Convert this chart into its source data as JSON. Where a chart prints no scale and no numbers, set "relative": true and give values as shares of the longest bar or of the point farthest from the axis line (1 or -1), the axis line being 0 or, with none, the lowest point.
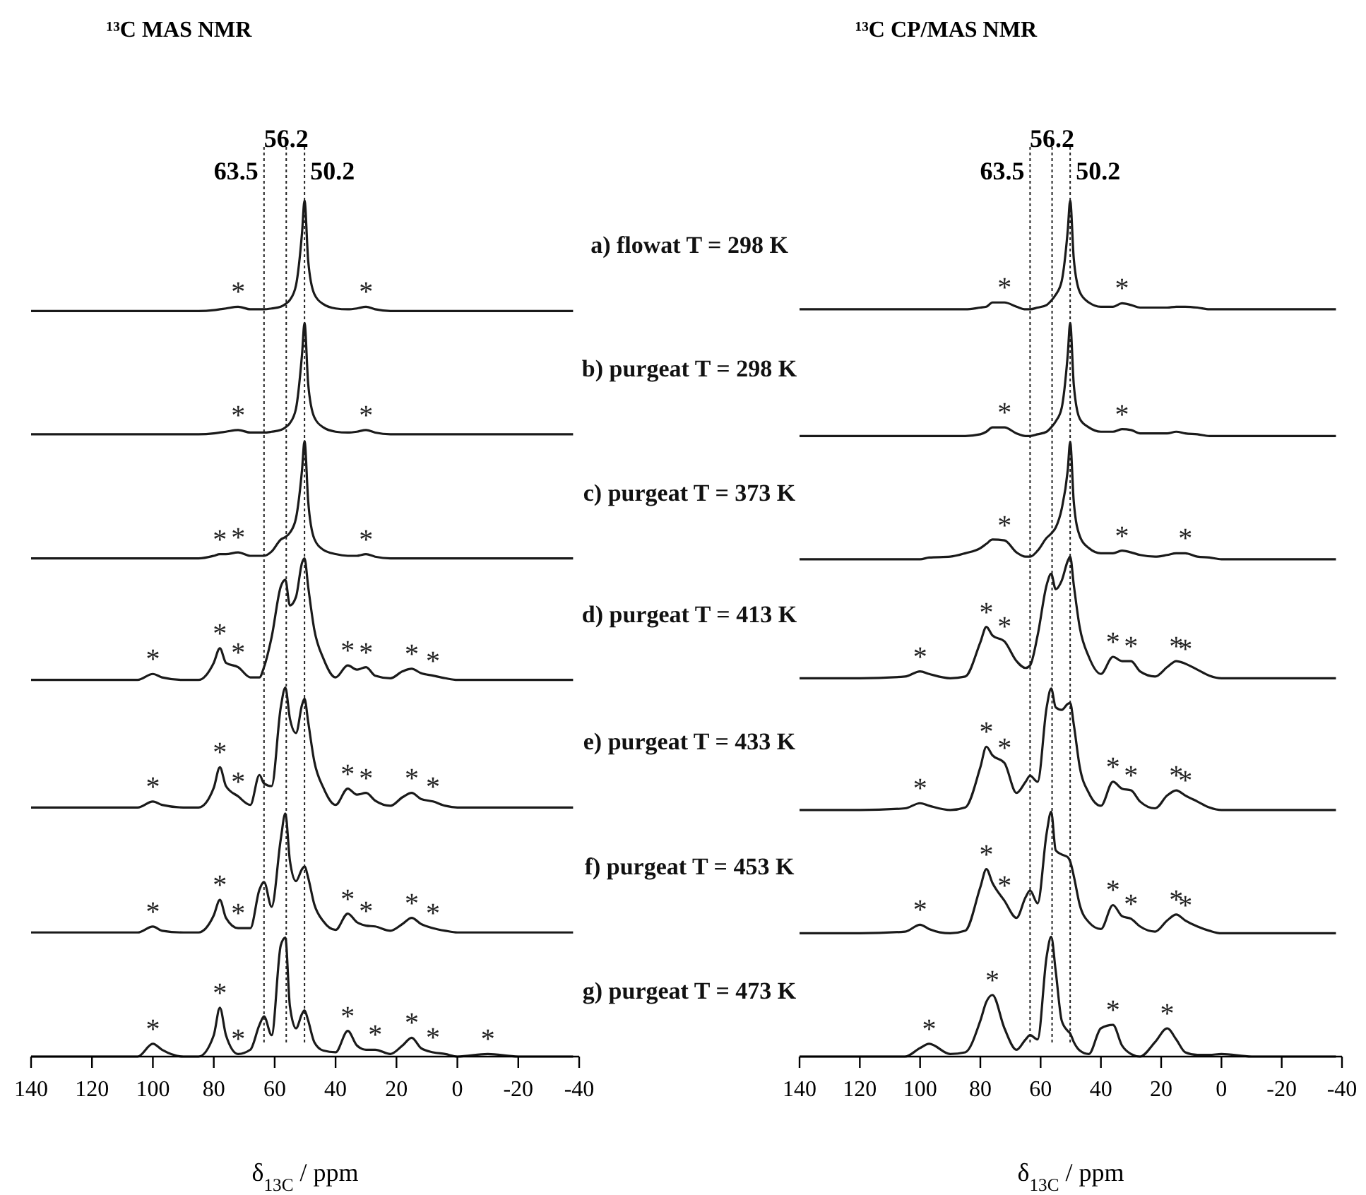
{
  "chart_data": [
    {
      "type": "line",
      "title": "¹³C MAS NMR",
      "xlabel": "δ$_{13C}$ / ppm",
      "relative": true,
      "xlim": [
        140,
        -40
      ],
      "xticks": [
        140,
        120,
        100,
        80,
        60,
        40,
        20,
        0,
        -20,
        -40
      ],
      "x": [
        140,
        120,
        105,
        100,
        97,
        90,
        85,
        80,
        78,
        76,
        72,
        68,
        65,
        63.5,
        61,
        58,
        56.5,
        55,
        53,
        51,
        50.2,
        49,
        47,
        44,
        40,
        36,
        33,
        30,
        27,
        22,
        18,
        15,
        12,
        8,
        4,
        0,
        -10,
        -20,
        -38
      ],
      "series": [
        {
          "name": "a) flowat T = 298 K",
          "color": "#1a1a1a",
          "values": [
            0.871,
            0.871,
            0.871,
            0.871,
            0.871,
            0.871,
            0.871,
            0.872,
            0.873,
            0.874,
            0.876,
            0.873,
            0.873,
            0.873,
            0.874,
            0.876,
            0.879,
            0.884,
            0.901,
            0.963,
            1.0,
            0.93,
            0.891,
            0.879,
            0.874,
            0.873,
            0.874,
            0.876,
            0.873,
            0.871,
            0.871,
            0.871,
            0.871,
            0.871,
            0.871,
            0.871,
            0.871,
            0.871,
            0.871
          ]
        },
        {
          "name": "b) purgeat T = 298 K",
          "color": "#1a1a1a",
          "values": [
            0.727,
            0.727,
            0.727,
            0.727,
            0.727,
            0.727,
            0.727,
            0.728,
            0.729,
            0.73,
            0.732,
            0.729,
            0.729,
            0.729,
            0.73,
            0.732,
            0.735,
            0.74,
            0.757,
            0.821,
            0.857,
            0.786,
            0.747,
            0.735,
            0.73,
            0.729,
            0.73,
            0.732,
            0.729,
            0.727,
            0.727,
            0.727,
            0.727,
            0.727,
            0.727,
            0.727,
            0.727,
            0.727,
            0.727
          ]
        },
        {
          "name": "c) purgeat T = 373 K",
          "color": "#1a1a1a",
          "values": [
            0.582,
            0.582,
            0.582,
            0.582,
            0.582,
            0.582,
            0.582,
            0.585,
            0.587,
            0.587,
            0.589,
            0.585,
            0.585,
            0.585,
            0.59,
            0.604,
            0.607,
            0.612,
            0.629,
            0.686,
            0.719,
            0.649,
            0.605,
            0.592,
            0.587,
            0.585,
            0.585,
            0.587,
            0.584,
            0.582,
            0.582,
            0.582,
            0.582,
            0.582,
            0.582,
            0.582,
            0.582,
            0.582,
            0.582
          ]
        },
        {
          "name": "d) purgeat T = 413 K",
          "color": "#1a1a1a",
          "values": [
            0.44,
            0.44,
            0.44,
            0.447,
            0.443,
            0.44,
            0.44,
            0.46,
            0.477,
            0.46,
            0.455,
            0.443,
            0.443,
            0.455,
            0.49,
            0.549,
            0.557,
            0.527,
            0.537,
            0.577,
            0.582,
            0.549,
            0.499,
            0.465,
            0.443,
            0.457,
            0.452,
            0.455,
            0.445,
            0.442,
            0.45,
            0.453,
            0.448,
            0.445,
            0.442,
            0.44,
            0.44,
            0.44,
            0.44
          ]
        },
        {
          "name": "e) purgeat T = 433 K",
          "color": "#1a1a1a",
          "values": [
            0.291,
            0.291,
            0.291,
            0.298,
            0.294,
            0.291,
            0.291,
            0.314,
            0.338,
            0.316,
            0.304,
            0.294,
            0.329,
            0.319,
            0.316,
            0.408,
            0.431,
            0.395,
            0.378,
            0.411,
            0.418,
            0.391,
            0.345,
            0.314,
            0.294,
            0.313,
            0.306,
            0.308,
            0.299,
            0.293,
            0.303,
            0.308,
            0.301,
            0.298,
            0.293,
            0.291,
            0.291,
            0.291,
            0.291
          ]
        },
        {
          "name": "f) purgeat T = 453 K",
          "color": "#1a1a1a",
          "values": [
            0.145,
            0.145,
            0.145,
            0.152,
            0.147,
            0.145,
            0.145,
            0.165,
            0.183,
            0.162,
            0.15,
            0.15,
            0.195,
            0.204,
            0.175,
            0.254,
            0.284,
            0.229,
            0.205,
            0.219,
            0.222,
            0.209,
            0.178,
            0.158,
            0.148,
            0.167,
            0.157,
            0.153,
            0.152,
            0.147,
            0.155,
            0.162,
            0.155,
            0.15,
            0.147,
            0.145,
            0.145,
            0.145,
            0.145
          ]
        },
        {
          "name": "g) purgeat T = 473 K",
          "color": "#1a1a1a",
          "values": [
            0,
            0,
            0,
            0.015,
            0.008,
            0,
            0,
            0.025,
            0.057,
            0.025,
            0.003,
            0.008,
            0.037,
            0.047,
            0.025,
            0.13,
            0.139,
            0.059,
            0.033,
            0.05,
            0.054,
            0.042,
            0.017,
            0.007,
            0.005,
            0.03,
            0.013,
            0.008,
            0.008,
            0.003,
            0.013,
            0.022,
            0.01,
            0.005,
            0.003,
            0,
            0.003,
            0,
            0
          ]
        }
      ],
      "ref_lines": [
        {
          "axis": "x",
          "value": 63.5,
          "label": "63.5",
          "line_style": "dotted"
        },
        {
          "axis": "x",
          "value": 56.2,
          "label": "56.2",
          "line_style": "dotted"
        },
        {
          "axis": "x",
          "value": 50.2,
          "label": "50.2",
          "line_style": "dotted"
        }
      ],
      "annotations": [
        {
          "text": "*",
          "x": 72,
          "y": 0.876
        },
        {
          "text": "*",
          "x": 30,
          "y": 0.876
        },
        {
          "text": "*",
          "x": 72,
          "y": 0.732
        },
        {
          "text": "*",
          "x": 30,
          "y": 0.732
        },
        {
          "text": "*",
          "x": 78,
          "y": 0.587
        },
        {
          "text": "*",
          "x": 72,
          "y": 0.589
        },
        {
          "text": "*",
          "x": 30,
          "y": 0.587
        },
        {
          "text": "*",
          "x": 100,
          "y": 0.447
        },
        {
          "text": "*",
          "x": 78,
          "y": 0.477
        },
        {
          "text": "*",
          "x": 72,
          "y": 0.455
        },
        {
          "text": "*",
          "x": 36,
          "y": 0.457
        },
        {
          "text": "*",
          "x": 30,
          "y": 0.455
        },
        {
          "text": "*",
          "x": 15,
          "y": 0.453
        },
        {
          "text": "*",
          "x": 8,
          "y": 0.445
        },
        {
          "text": "*",
          "x": 100,
          "y": 0.298
        },
        {
          "text": "*",
          "x": 78,
          "y": 0.338
        },
        {
          "text": "*",
          "x": 72,
          "y": 0.304
        },
        {
          "text": "*",
          "x": 36,
          "y": 0.313
        },
        {
          "text": "*",
          "x": 30,
          "y": 0.308
        },
        {
          "text": "*",
          "x": 15,
          "y": 0.308
        },
        {
          "text": "*",
          "x": 8,
          "y": 0.298
        },
        {
          "text": "*",
          "x": 100,
          "y": 0.152
        },
        {
          "text": "*",
          "x": 78,
          "y": 0.183
        },
        {
          "text": "*",
          "x": 72,
          "y": 0.15
        },
        {
          "text": "*",
          "x": 36,
          "y": 0.167
        },
        {
          "text": "*",
          "x": 30,
          "y": 0.153
        },
        {
          "text": "*",
          "x": 15,
          "y": 0.162
        },
        {
          "text": "*",
          "x": 8,
          "y": 0.15
        },
        {
          "text": "*",
          "x": 100,
          "y": 0.015
        },
        {
          "text": "*",
          "x": 78,
          "y": 0.057
        },
        {
          "text": "*",
          "x": 72,
          "y": 0.003
        },
        {
          "text": "*",
          "x": 36,
          "y": 0.03
        },
        {
          "text": "*",
          "x": 27,
          "y": 0.008
        },
        {
          "text": "*",
          "x": 15,
          "y": 0.022
        },
        {
          "text": "*",
          "x": 8,
          "y": 0.005
        },
        {
          "text": "*",
          "x": -10,
          "y": 0.003
        }
      ]
    },
    {
      "type": "line",
      "title": "¹³C CP/MAS NMR",
      "xlabel": "δ$_{13C}$ / ppm",
      "relative": true,
      "xlim": [
        140,
        -40
      ],
      "xticks": [
        140,
        120,
        100,
        80,
        60,
        40,
        20,
        0,
        -20,
        -40
      ],
      "x": [
        140,
        120,
        105,
        100,
        97,
        90,
        85,
        80,
        78,
        76,
        72,
        68,
        65,
        63.5,
        61,
        58,
        56.5,
        55,
        53,
        51,
        50.2,
        49,
        47,
        44,
        40,
        36,
        33,
        30,
        27,
        22,
        18,
        15,
        12,
        8,
        4,
        0,
        -10,
        -20,
        -38
      ],
      "series": [
        {
          "color": "#1a1a1a",
          "values": [
            0.873,
            0.873,
            0.873,
            0.873,
            0.873,
            0.873,
            0.873,
            0.875,
            0.876,
            0.881,
            0.881,
            0.876,
            0.873,
            0.873,
            0.875,
            0.878,
            0.883,
            0.89,
            0.906,
            0.965,
            1.0,
            0.932,
            0.893,
            0.881,
            0.876,
            0.876,
            0.88,
            0.878,
            0.875,
            0.875,
            0.875,
            0.876,
            0.876,
            0.875,
            0.873,
            0.873,
            0.873,
            0.873,
            0.873
          ]
        },
        {
          "color": "#1a1a1a",
          "values": [
            0.725,
            0.725,
            0.725,
            0.725,
            0.725,
            0.725,
            0.725,
            0.727,
            0.73,
            0.735,
            0.735,
            0.728,
            0.725,
            0.725,
            0.727,
            0.73,
            0.735,
            0.742,
            0.758,
            0.82,
            0.857,
            0.785,
            0.745,
            0.735,
            0.73,
            0.73,
            0.733,
            0.732,
            0.728,
            0.728,
            0.728,
            0.73,
            0.728,
            0.727,
            0.725,
            0.725,
            0.725,
            0.725,
            0.725
          ]
        },
        {
          "color": "#1a1a1a",
          "values": [
            0.581,
            0.581,
            0.581,
            0.581,
            0.583,
            0.584,
            0.588,
            0.594,
            0.599,
            0.604,
            0.603,
            0.589,
            0.584,
            0.584,
            0.591,
            0.606,
            0.611,
            0.618,
            0.64,
            0.685,
            0.718,
            0.648,
            0.608,
            0.594,
            0.588,
            0.588,
            0.591,
            0.589,
            0.586,
            0.584,
            0.586,
            0.588,
            0.588,
            0.584,
            0.583,
            0.581,
            0.581,
            0.581,
            0.581
          ]
        },
        {
          "color": "#1a1a1a",
          "values": [
            0.442,
            0.442,
            0.444,
            0.45,
            0.447,
            0.442,
            0.444,
            0.484,
            0.502,
            0.492,
            0.485,
            0.462,
            0.454,
            0.457,
            0.492,
            0.551,
            0.564,
            0.546,
            0.556,
            0.579,
            0.584,
            0.551,
            0.501,
            0.467,
            0.447,
            0.467,
            0.462,
            0.462,
            0.45,
            0.444,
            0.455,
            0.462,
            0.459,
            0.452,
            0.445,
            0.442,
            0.442,
            0.442,
            0.442
          ]
        },
        {
          "color": "#1a1a1a",
          "values": [
            0.288,
            0.288,
            0.29,
            0.296,
            0.293,
            0.288,
            0.291,
            0.338,
            0.362,
            0.352,
            0.343,
            0.308,
            0.321,
            0.328,
            0.321,
            0.408,
            0.43,
            0.408,
            0.405,
            0.412,
            0.413,
            0.388,
            0.338,
            0.308,
            0.293,
            0.321,
            0.313,
            0.311,
            0.298,
            0.29,
            0.305,
            0.311,
            0.305,
            0.298,
            0.291,
            0.288,
            0.288,
            0.288,
            0.288
          ]
        },
        {
          "color": "#1a1a1a",
          "values": [
            0.144,
            0.144,
            0.146,
            0.154,
            0.149,
            0.144,
            0.147,
            0.198,
            0.219,
            0.203,
            0.182,
            0.162,
            0.186,
            0.194,
            0.179,
            0.261,
            0.286,
            0.241,
            0.236,
            0.233,
            0.228,
            0.211,
            0.177,
            0.157,
            0.149,
            0.177,
            0.164,
            0.161,
            0.152,
            0.146,
            0.159,
            0.166,
            0.159,
            0.152,
            0.147,
            0.144,
            0.144,
            0.144,
            0.144
          ]
        },
        {
          "color": "#1a1a1a",
          "values": [
            0,
            0,
            0,
            0.01,
            0.015,
            0.003,
            0.005,
            0.042,
            0.064,
            0.072,
            0.033,
            0.008,
            0.02,
            0.025,
            0.02,
            0.117,
            0.14,
            0.1,
            0.042,
            0.03,
            0.027,
            0.017,
            0.007,
            0.003,
            0.033,
            0.037,
            0.013,
            0.003,
            0,
            0.017,
            0.033,
            0.02,
            0.005,
            0.002,
            0.002,
            0.003,
            0,
            0,
            0
          ]
        }
      ],
      "ref_lines": [
        {
          "axis": "x",
          "value": 63.5,
          "label": "63.5",
          "line_style": "dotted"
        },
        {
          "axis": "x",
          "value": 56.2,
          "label": "56.2",
          "line_style": "dotted"
        },
        {
          "axis": "x",
          "value": 50.2,
          "label": "50.2",
          "line_style": "dotted"
        }
      ],
      "annotations": [
        {
          "text": "*",
          "x": 72,
          "y": 0.881
        },
        {
          "text": "*",
          "x": 33,
          "y": 0.88
        },
        {
          "text": "*",
          "x": 72,
          "y": 0.735
        },
        {
          "text": "*",
          "x": 33,
          "y": 0.733
        },
        {
          "text": "*",
          "x": 72,
          "y": 0.603
        },
        {
          "text": "*",
          "x": 33,
          "y": 0.591
        },
        {
          "text": "*",
          "x": 12,
          "y": 0.588
        },
        {
          "text": "*",
          "x": 100,
          "y": 0.45
        },
        {
          "text": "*",
          "x": 78,
          "y": 0.502
        },
        {
          "text": "*",
          "x": 72,
          "y": 0.485
        },
        {
          "text": "*",
          "x": 36,
          "y": 0.467
        },
        {
          "text": "*",
          "x": 30,
          "y": 0.462
        },
        {
          "text": "*",
          "x": 15,
          "y": 0.462
        },
        {
          "text": "*",
          "x": 12,
          "y": 0.459
        },
        {
          "text": "*",
          "x": 100,
          "y": 0.296
        },
        {
          "text": "*",
          "x": 78,
          "y": 0.362
        },
        {
          "text": "*",
          "x": 72,
          "y": 0.343
        },
        {
          "text": "*",
          "x": 36,
          "y": 0.321
        },
        {
          "text": "*",
          "x": 30,
          "y": 0.311
        },
        {
          "text": "*",
          "x": 15,
          "y": 0.311
        },
        {
          "text": "*",
          "x": 12,
          "y": 0.305
        },
        {
          "text": "*",
          "x": 100,
          "y": 0.154
        },
        {
          "text": "*",
          "x": 78,
          "y": 0.219
        },
        {
          "text": "*",
          "x": 72,
          "y": 0.182
        },
        {
          "text": "*",
          "x": 36,
          "y": 0.177
        },
        {
          "text": "*",
          "x": 30,
          "y": 0.161
        },
        {
          "text": "*",
          "x": 15,
          "y": 0.166
        },
        {
          "text": "*",
          "x": 12,
          "y": 0.159
        },
        {
          "text": "*",
          "x": 97,
          "y": 0.015
        },
        {
          "text": "*",
          "x": 76,
          "y": 0.072
        },
        {
          "text": "*",
          "x": 36,
          "y": 0.037
        },
        {
          "text": "*",
          "x": 18,
          "y": 0.033
        }
      ]
    }
  ]
}
